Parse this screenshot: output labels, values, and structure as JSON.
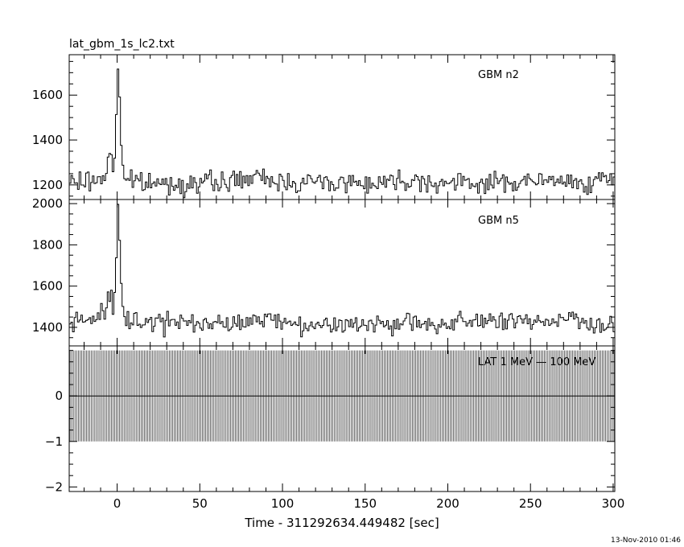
{
  "chart_data": {
    "type": "line",
    "title": "lat_gbm_1s_lc2.txt",
    "xlabel": "Time - 311292634.449482 [sec]",
    "xlim": [
      -29,
      301
    ],
    "xticks": [
      "0",
      "50",
      "100",
      "150",
      "200",
      "250",
      "300"
    ],
    "timestamp": "13-Nov-2010 01:46",
    "panels": [
      {
        "name": "GBM n2",
        "ylim": [
          1135,
          1780
        ],
        "yticks": [
          "1200",
          "1400",
          "1600"
        ],
        "series": [
          {
            "x": [
              -29,
              -20,
              -12,
              -8,
              -6,
              -4,
              -3,
              -2,
              -1,
              0,
              0.5,
              1,
              1.5,
              2,
              3,
              4,
              6,
              10,
              30,
              60,
              82,
              100,
              150,
              180,
              200,
              250,
              300
            ],
            "values": [
              1210,
              1215,
              1220,
              1240,
              1280,
              1350,
              1300,
              1260,
              1420,
              1600,
              1740,
              1700,
              1580,
              1420,
              1320,
              1260,
              1230,
              1210,
              1205,
              1210,
              1230,
              1215,
              1210,
              1225,
              1205,
              1215,
              1215
            ]
          }
        ]
      },
      {
        "name": "GBM n5",
        "ylim": [
          1310,
          2020
        ],
        "yticks": [
          "1400",
          "1600",
          "1800",
          "2000"
        ],
        "series": [
          {
            "x": [
              -29,
              -20,
              -12,
              -8,
              -6,
              -4,
              -3,
              -2,
              -1,
              0,
              0.5,
              1,
              1.5,
              2,
              3,
              4,
              6,
              10,
              30,
              60,
              90,
              100,
              150,
              200,
              250,
              260,
              280,
              290,
              300
            ],
            "values": [
              1420,
              1430,
              1450,
              1480,
              1520,
              1560,
              1490,
              1450,
              1600,
              1850,
              2000,
              1950,
              1800,
              1620,
              1500,
              1450,
              1440,
              1430,
              1420,
              1415,
              1440,
              1420,
              1420,
              1420,
              1420,
              1440,
              1440,
              1420,
              1410
            ]
          }
        ]
      },
      {
        "name": "LAT 1 MeV — 100 MeV",
        "ylim": [
          -2.1,
          1.1
        ],
        "yticks": [
          "-2",
          "-1",
          "0"
        ],
        "series": [
          {
            "x": [
              -29,
              301
            ],
            "values": [
              0,
              0
            ],
            "error": 1
          }
        ]
      }
    ]
  }
}
